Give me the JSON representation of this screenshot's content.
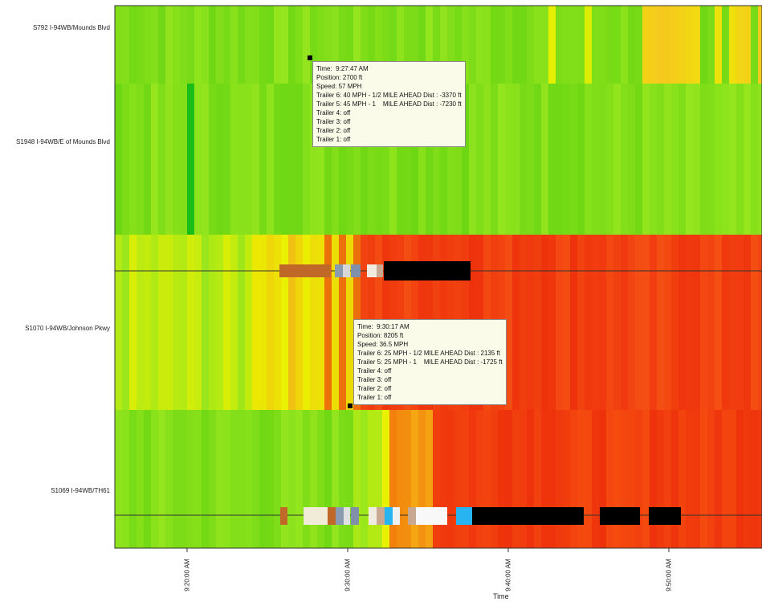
{
  "chart_data": {
    "type": "heatmap",
    "title": "",
    "xlabel": "Time",
    "ylabel": "",
    "x_tick_labels": [
      "9:20:00 AM",
      "9:30:00 AM",
      "9:40:00 AM",
      "9:50:00 AM"
    ],
    "x_range_minutes_after_9am": [
      15.5,
      55.8
    ],
    "stations": [
      {
        "label": "S792 I-94WB/Mounds Blvd"
      },
      {
        "label": "S1948 I-94WB/E of Mounds Blvd"
      },
      {
        "label": "S1070 I-94WB/Johnson Pkwy"
      },
      {
        "label": "S1069 I-94WB/TH61"
      }
    ],
    "datatips": [
      {
        "lines": [
          "Time:  9:27:47 AM",
          "Position: 2700 ft",
          "Speed: 57 MPH",
          "Trailer 6: 40 MPH - 1/2 MILE AHEAD Dist : -3370 ft",
          "Trailer 5: 45 MPH - 1    MILE AHEAD Dist : -7230 ft",
          "Trailer 4: off",
          "Trailer 3: off",
          "Trailer 2: off",
          "Trailer 1: off"
        ]
      },
      {
        "lines": [
          "Time:  9:30:17 AM",
          "Position: 8205 ft",
          "Speed: 36.5 MPH",
          "Trailer 6: 25 MPH - 1/2 MILE AHEAD Dist : 2135 ft",
          "Trailer 5: 25 MPH - 1    MILE AHEAD Dist : -1725 ft",
          "Trailer 4: off",
          "Trailer 3: off",
          "Trailer 2: off",
          "Trailer 1: off"
        ]
      }
    ],
    "colors": {
      "free_flow": "#7fe01a",
      "moderate": "#e8f000",
      "slow": "#f04010",
      "trailer_black": "#000000",
      "trailer_cyan": "#27b4f0",
      "trailer_brown": "#c06828",
      "grid_line": "#333333"
    }
  }
}
